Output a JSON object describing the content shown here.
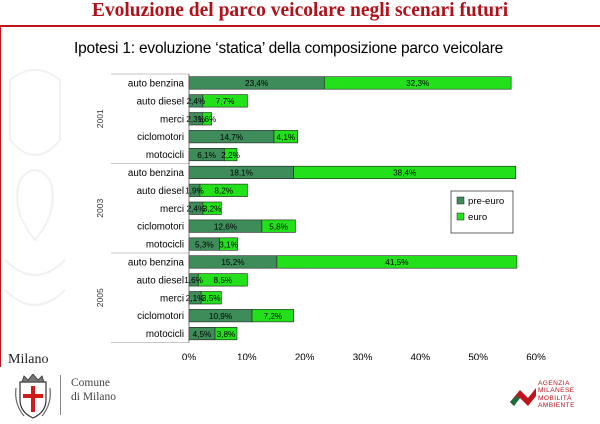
{
  "slide": {
    "title": "Evoluzione del parco veicolare negli scenari futuri",
    "subtitle": "Ipotesi 1: evoluzione ‘statica’ della composizione parco veicolare"
  },
  "chart_data": {
    "type": "bar",
    "orientation": "horizontal",
    "stacked": true,
    "groups": [
      {
        "label": "2001",
        "categories": [
          "auto benzina",
          "auto diesel",
          "merci",
          "ciclomotori",
          "motocicli"
        ]
      },
      {
        "label": "2003",
        "categories": [
          "auto benzina",
          "auto diesel",
          "merci",
          "ciclomotori",
          "motocicli"
        ]
      },
      {
        "label": "2005",
        "categories": [
          "auto benzina",
          "auto diesel",
          "merci",
          "ciclomotori",
          "motocicli"
        ]
      }
    ],
    "series": [
      {
        "name": "pre-euro",
        "color": "#3d8c5a",
        "values": [
          23.4,
          2.4,
          2.3,
          14.7,
          6.1,
          18.1,
          1.9,
          2.4,
          12.6,
          5.3,
          15.2,
          1.6,
          2.1,
          10.9,
          4.5
        ],
        "labels": [
          "23,4%",
          "2,4%",
          "2,3%",
          "14,7%",
          "6,1%",
          "18,1%",
          "1,9%",
          "2,4%",
          "12,6%",
          "5,3%",
          "15,2%",
          "1,6%",
          "2,1%",
          "10,9%",
          "4,5%"
        ]
      },
      {
        "name": "euro",
        "color": "#22e01a",
        "values": [
          32.3,
          7.7,
          1.6,
          4.1,
          2.2,
          38.4,
          8.2,
          3.2,
          5.8,
          3.1,
          41.5,
          8.5,
          3.5,
          7.2,
          3.8
        ],
        "labels": [
          "32,3%",
          "7,7%",
          "1,6%",
          "4,1%",
          "2,2%",
          "38,4%",
          "8,2%",
          "3,2%",
          "5,8%",
          "3,1%",
          "41,5%",
          "8,5%",
          "3,5%",
          "7,2%",
          "3,8%"
        ]
      }
    ],
    "xlim": [
      0,
      60
    ],
    "xticks": [
      "0%",
      "10%",
      "20%",
      "30%",
      "40%",
      "50%",
      "60%"
    ],
    "grid": false,
    "legend": {
      "position": "right",
      "entries": [
        "pre-euro",
        "euro"
      ]
    }
  },
  "footer": {
    "city": "Milano",
    "comune_line1": "Comune",
    "comune_line2": "di Milano",
    "agenzia_lines": [
      "AGENZIA",
      "MILANESE",
      "MOBILITÀ",
      "AMBIENTE"
    ]
  },
  "colors": {
    "accent": "#c0141c",
    "pre_euro": "#3d8c5a",
    "euro": "#22e01a"
  }
}
